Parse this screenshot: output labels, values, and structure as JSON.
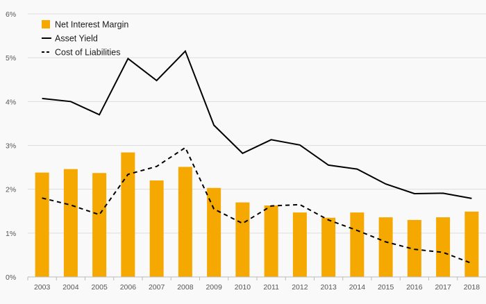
{
  "chart_data": {
    "type": "bar",
    "categories": [
      "2003",
      "2004",
      "2005",
      "2006",
      "2007",
      "2008",
      "2009",
      "2010",
      "2011",
      "2012",
      "2013",
      "2014",
      "2015",
      "2016",
      "2017",
      "2018"
    ],
    "ylim": [
      0,
      6
    ],
    "yticks": [
      0,
      1,
      2,
      3,
      4,
      5,
      6
    ],
    "ytick_labels": [
      "0%",
      "1%",
      "2%",
      "3%",
      "4%",
      "5%",
      "6%"
    ],
    "grid": true,
    "legend_position": "top-left",
    "series": [
      {
        "name": "Net Interest Margin",
        "kind": "bar",
        "color": "#f5a800",
        "values": [
          2.38,
          2.46,
          2.37,
          2.84,
          2.2,
          2.51,
          2.03,
          1.7,
          1.63,
          1.47,
          1.35,
          1.47,
          1.36,
          1.3,
          1.36,
          1.49
        ]
      },
      {
        "name": "Asset Yield",
        "kind": "line",
        "style": "solid",
        "color": "#000000",
        "values": [
          4.07,
          4.0,
          3.7,
          4.98,
          4.48,
          5.15,
          3.46,
          2.82,
          3.13,
          3.01,
          2.55,
          2.46,
          2.12,
          1.9,
          1.91,
          1.79
        ]
      },
      {
        "name": "Cost of Liabilities",
        "kind": "line",
        "style": "dashed",
        "color": "#000000",
        "values": [
          1.8,
          1.64,
          1.42,
          2.34,
          2.52,
          2.95,
          1.55,
          1.22,
          1.62,
          1.65,
          1.3,
          1.06,
          0.8,
          0.63,
          0.56,
          0.31
        ]
      }
    ]
  }
}
